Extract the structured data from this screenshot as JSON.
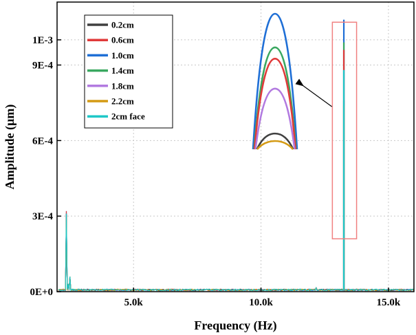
{
  "chart_data": {
    "type": "line",
    "title": "",
    "xlabel": "Frequency (Hz)",
    "ylabel": "Amplitude (μm)",
    "xlim": [
      2000,
      16000
    ],
    "ylim": [
      0,
      0.00115
    ],
    "x_ticks": [
      {
        "value": 5000,
        "label": "5.0k"
      },
      {
        "value": 10000,
        "label": "10.0k"
      },
      {
        "value": 15000,
        "label": "15.0k"
      }
    ],
    "y_ticks": [
      {
        "value": 0,
        "label": "0E+0"
      },
      {
        "value": 0.0003,
        "label": "3E-4"
      },
      {
        "value": 0.0006,
        "label": "6E-4"
      },
      {
        "value": 0.0009,
        "label": "9E-4"
      },
      {
        "value": 0.001,
        "label": "1E-3"
      }
    ],
    "grid": true,
    "legend_position": "top-left",
    "peak_frequency": 13250,
    "low_frequency_peak": 2350,
    "series": [
      {
        "name": "0.2cm",
        "color": "#404040",
        "peak": 0.00076,
        "low_peak": 0.00031
      },
      {
        "name": "0.6cm",
        "color": "#e03a3a",
        "peak": 0.00096,
        "low_peak": 0.00032
      },
      {
        "name": "1.0cm",
        "color": "#1f6fd6",
        "peak": 0.00108,
        "low_peak": 0.00032
      },
      {
        "name": "1.4cm",
        "color": "#3aa860",
        "peak": 0.00099,
        "low_peak": 0.00031
      },
      {
        "name": "1.8cm",
        "color": "#b27ae0",
        "peak": 0.00088,
        "low_peak": 0.00031
      },
      {
        "name": "2.2cm",
        "color": "#d49a14",
        "peak": 0.00074,
        "low_peak": 0.0003
      },
      {
        "name": "2cm face",
        "color": "#1fc8c8",
        "peak": 0.00088,
        "low_peak": 0.00031
      }
    ],
    "inset": {
      "description_order_top_to_bottom": [
        "1.0cm",
        "1.4cm",
        "0.6cm",
        "1.8cm",
        "0.2cm",
        "2.2cm"
      ]
    }
  }
}
